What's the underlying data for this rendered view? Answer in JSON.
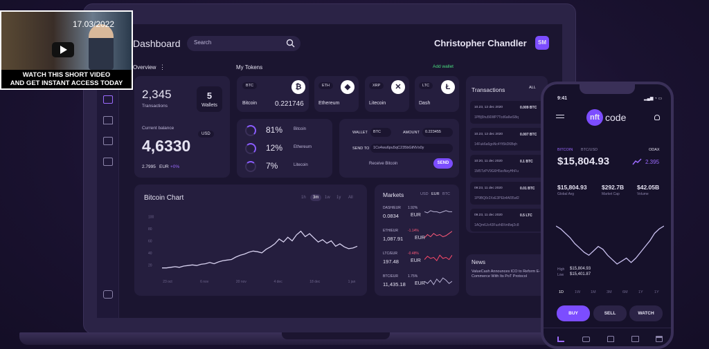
{
  "video": {
    "date": "17.03/2022",
    "caption_line1": "WATCH THIS SHORT VIDEO",
    "caption_line2": "AND GET INSTANT ACCESS TODAY"
  },
  "header": {
    "title": "Dashboard",
    "search_placeholder": "Search",
    "user_name": "Christopher Chandler",
    "user_initials": "SM"
  },
  "overview": {
    "label": "Overview",
    "menu": "⋮",
    "transactions_count": "2,345",
    "transactions_label": "Transactions",
    "wallets_count": "5",
    "wallets_label": "Wallets",
    "balance_label": "Current balance",
    "currency_badge": "USD",
    "balance_value": "4,6330",
    "sub_value": "2.7995",
    "sub_currency": "EUR",
    "sub_change": "+0%"
  },
  "tokens": {
    "label": "My Tokens",
    "add_link": "Add wallet",
    "items": [
      {
        "code": "BTC",
        "name": "Bitcoin",
        "amount": "0.221746",
        "glyph": "₿"
      },
      {
        "code": "ETH",
        "name": "Ethereum",
        "amount": "",
        "glyph": "◆"
      },
      {
        "code": "XRP",
        "name": "Litecoin",
        "amount": "",
        "glyph": "✕"
      },
      {
        "code": "LTC",
        "name": "Dash",
        "amount": "",
        "glyph": "Ł"
      }
    ]
  },
  "allocation": [
    {
      "pct": "81%",
      "name": "Bitcoin",
      "level": 0.81
    },
    {
      "pct": "12%",
      "name": "Ethereum",
      "level": 0.12
    },
    {
      "pct": "7%",
      "name": "Litecoin",
      "level": 0.07
    }
  ],
  "send": {
    "wallet_label": "WALLET",
    "wallet_value": "BTC",
    "amount_label": "AMOUNT",
    "amount_value": "0.223455",
    "sendto_label": "SEND TO",
    "sendto_value": "1Cs4wu6pu5qC235bGtNVs0y",
    "receive_link": "Receive Bitcoin",
    "send_button": "SEND"
  },
  "chart": {
    "title": "Bitcoin Chart",
    "ranges": [
      "1h",
      "3m",
      "1w",
      "1y",
      "All"
    ],
    "active_range": "3m"
  },
  "chart_data": {
    "type": "line",
    "title": "Bitcoin Chart",
    "xlabel": "",
    "ylabel": "",
    "x_ticks": [
      "23 oct",
      "6 nov",
      "20 nov",
      "4 dec",
      "18 dec",
      "1 jan"
    ],
    "y_ticks": [
      "100",
      "80",
      "60",
      "40",
      "20"
    ],
    "ylim": [
      10,
      110
    ],
    "values": [
      15,
      15,
      16,
      17,
      16,
      18,
      19,
      20,
      19,
      21,
      22,
      24,
      22,
      25,
      27,
      28,
      29,
      33,
      36,
      38,
      41,
      43,
      42,
      40,
      46,
      50,
      55,
      63,
      58,
      66,
      60,
      70,
      76,
      67,
      72,
      65,
      58,
      62,
      56,
      60,
      51,
      55,
      50,
      47,
      48,
      51
    ]
  },
  "markets": {
    "title": "Markets",
    "tabs": [
      "USD",
      "EUR",
      "BTC"
    ],
    "active_tab": "EUR",
    "items": [
      {
        "pair": "DASH/EUR",
        "change": "1.92%",
        "value": "0.0834",
        "currency": "EUR",
        "color": "#b8b2d4",
        "trend": [
          6,
          5,
          7,
          6,
          6,
          5,
          6,
          7,
          6,
          6
        ]
      },
      {
        "pair": "ETH/EUR",
        "change": "-1.14%",
        "value": "1,087.91",
        "currency": "EUR",
        "color": "#ff5a7a",
        "trend": [
          3,
          6,
          4,
          7,
          5,
          6,
          4,
          5,
          7,
          9
        ]
      },
      {
        "pair": "LTC/EUR",
        "change": "-0.48%",
        "value": "197.48",
        "currency": "EUR",
        "color": "#ff4a6a",
        "trend": [
          4,
          7,
          5,
          6,
          3,
          8,
          5,
          6,
          4,
          8
        ]
      },
      {
        "pair": "BTC/EUR",
        "change": "1.75%",
        "value": "11,435.18",
        "currency": "EUR",
        "color": "#b8b2d4",
        "trend": [
          5,
          3,
          6,
          2,
          7,
          4,
          8,
          6,
          3,
          5
        ]
      }
    ]
  },
  "transactions": {
    "title": "Transactions",
    "all_link": "ALL",
    "items": [
      {
        "date": "10.23, 12 dec 2020",
        "amount": "0.009 BTC",
        "hash": "1PBj5hu56WP7Tcd6a6wS8q"
      },
      {
        "date": "10.23, 12 dec 2020",
        "amount": "0.007 BTC",
        "hash": "14Fuk6a6goNc4Yt5kD6Bqh"
      },
      {
        "date": "10:20, 11 dec 2020",
        "amount": "0.1 BTC",
        "hash": "1M5TzPV9G6H5sxNeyHhFu"
      },
      {
        "date": "09:23, 11 dec 2020",
        "amount": "0.01 BTC",
        "hash": "1P9BQ6r2XxE3PEb4Af35af2"
      },
      {
        "date": "09.23, 11 dec 2020",
        "amount": "0.5 LTC",
        "hash": "1AQm6Jc43Fuzh8Xm8wj2c8"
      }
    ]
  },
  "news": {
    "title": "News",
    "text": "ValueCash Announces ICO to Reform E-Commerce With Its PoT Protocol"
  },
  "phone": {
    "time": "9:41",
    "logo_nft": "nft",
    "logo_code": "code",
    "pair": "BITCOIN",
    "pair_sub": "BTC/USD",
    "exchange": "ODAX",
    "price": "$15,804.93",
    "change": "2.395",
    "stats": [
      {
        "value": "$15,804.93",
        "label": "Global Avg"
      },
      {
        "value": "$292.7B",
        "label": "Market Cap"
      },
      {
        "value": "$42.05B",
        "label": "Volume"
      }
    ],
    "high_label": "High",
    "high_value": "$15,804.93",
    "low_label": "Low",
    "low_value": "$15,401.87",
    "ranges": [
      "1D",
      "1W",
      "1M",
      "3M",
      "6M",
      "1Y",
      "1Y"
    ],
    "active_range": "1D",
    "buy": "BUY",
    "sell": "SELL",
    "watch": "WATCH",
    "chart_values": [
      60,
      58,
      55,
      52,
      48,
      45,
      42,
      40,
      43,
      46,
      44,
      40,
      37,
      34,
      36,
      38,
      35,
      38,
      42,
      46,
      50,
      55,
      58,
      60
    ]
  },
  "colors": {
    "accent": "#7c4dff",
    "card": "#251e3e",
    "background": "#1b1530",
    "negative": "#ff4a6a",
    "positive": "#4ade80"
  }
}
